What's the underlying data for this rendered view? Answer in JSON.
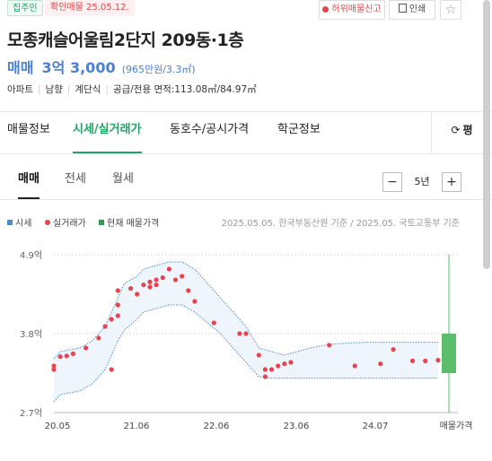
{
  "header": {
    "owner_badge": "집주인",
    "verified_badge": "확인매물 25.05.12.",
    "report_button": "허위매물신고",
    "print_button": "인쇄",
    "favorite_icon": "star-outline-icon"
  },
  "listing": {
    "title": "모종캐슬어울림2단지 209동·1층",
    "trade_type": "매매",
    "price": "3억 3,000",
    "price_per_unit": "(965만원/3.3㎡)",
    "attributes": [
      "아파트",
      "남향",
      "계단식",
      "공급/전용 면적:113.08㎡/84.97㎡"
    ]
  },
  "tabs": [
    {
      "label": "매물정보",
      "active": false
    },
    {
      "label": "시세/실거래가",
      "active": true
    },
    {
      "label": "동호수/공시가격",
      "active": false
    },
    {
      "label": "학군정보",
      "active": false
    }
  ],
  "unit_toggle": {
    "label": "평",
    "icon": "refresh-icon"
  },
  "subtabs": [
    {
      "label": "매매",
      "active": true
    },
    {
      "label": "전세",
      "active": false
    },
    {
      "label": "월세",
      "active": false
    }
  ],
  "period": {
    "minus": "−",
    "value": "5년",
    "plus": "+"
  },
  "legend": {
    "items": [
      {
        "label": "시세",
        "color": "#4a8bd6",
        "shape": "square"
      },
      {
        "label": "실거래가",
        "color": "#e8444f",
        "shape": "dot"
      },
      {
        "label": "현재 매물가격",
        "color": "#2f9d4f",
        "shape": "square"
      }
    ],
    "source": "2025.05.05. 한국부동산원 기준 / 2025.05. 국토교통부 기준"
  },
  "chart_data": {
    "type": "scatter",
    "x_ticks": [
      "20.05",
      "21.06",
      "22.06",
      "23.06",
      "24.07",
      "매물가격"
    ],
    "y_ticks": [
      "4.9억",
      "3.8억",
      "2.7억"
    ],
    "ylim": [
      2.7,
      4.9
    ],
    "xlim": [
      "2020-05",
      "2025-05"
    ],
    "band_color": "#4a8bd6",
    "band_fill": "#eef5fc",
    "dot_color": "#e8444f",
    "listing_color": "#5cbd6c",
    "price_band": {
      "x": [
        "2020-05",
        "2020-06",
        "2020-09",
        "2020-11",
        "2021-01",
        "2021-02",
        "2021-03",
        "2021-04",
        "2021-06",
        "2021-07",
        "2021-09",
        "2021-11",
        "2022-01",
        "2022-03",
        "2022-05",
        "2022-07",
        "2022-09",
        "2022-11",
        "2023-01",
        "2023-03",
        "2023-05",
        "2023-07",
        "2023-09",
        "2023-12",
        "2024-03",
        "2024-06",
        "2024-09",
        "2024-12",
        "2025-03",
        "2025-05"
      ],
      "upper": [
        3.45,
        3.55,
        3.6,
        3.7,
        3.9,
        4.1,
        4.3,
        4.5,
        4.6,
        4.7,
        4.75,
        4.8,
        4.8,
        4.7,
        4.5,
        4.3,
        4.1,
        3.9,
        3.6,
        3.55,
        3.5,
        3.55,
        3.6,
        3.65,
        3.67,
        3.68,
        3.68,
        3.68,
        3.68,
        3.68
      ],
      "lower": [
        2.85,
        2.95,
        3.0,
        3.1,
        3.3,
        3.5,
        3.7,
        3.85,
        4.0,
        4.1,
        4.15,
        4.2,
        4.2,
        4.1,
        3.95,
        3.8,
        3.6,
        3.4,
        3.2,
        3.18,
        3.18,
        3.18,
        3.18,
        3.18,
        3.18,
        3.18,
        3.18,
        3.18,
        3.18,
        3.18
      ]
    },
    "transactions": [
      {
        "x": "2020-05",
        "y": 3.3
      },
      {
        "x": "2020-05",
        "y": 3.35
      },
      {
        "x": "2020-06",
        "y": 3.48
      },
      {
        "x": "2020-07",
        "y": 3.49
      },
      {
        "x": "2020-08",
        "y": 3.52
      },
      {
        "x": "2020-10",
        "y": 3.6
      },
      {
        "x": "2020-12",
        "y": 3.74
      },
      {
        "x": "2021-01",
        "y": 3.9
      },
      {
        "x": "2021-02",
        "y": 4.0
      },
      {
        "x": "2021-02",
        "y": 3.3
      },
      {
        "x": "2021-03",
        "y": 4.05
      },
      {
        "x": "2021-03",
        "y": 4.2
      },
      {
        "x": "2021-03",
        "y": 4.4
      },
      {
        "x": "2021-05",
        "y": 4.43
      },
      {
        "x": "2021-06",
        "y": 4.35
      },
      {
        "x": "2021-07",
        "y": 4.48
      },
      {
        "x": "2021-08",
        "y": 4.52
      },
      {
        "x": "2021-08",
        "y": 4.45
      },
      {
        "x": "2021-09",
        "y": 4.55
      },
      {
        "x": "2021-09",
        "y": 4.48
      },
      {
        "x": "2021-10",
        "y": 4.58
      },
      {
        "x": "2021-11",
        "y": 4.7
      },
      {
        "x": "2021-12",
        "y": 4.55
      },
      {
        "x": "2022-01",
        "y": 4.6
      },
      {
        "x": "2022-02",
        "y": 4.4
      },
      {
        "x": "2022-03",
        "y": 4.25
      },
      {
        "x": "2022-06",
        "y": 3.95
      },
      {
        "x": "2022-10",
        "y": 3.8
      },
      {
        "x": "2022-11",
        "y": 3.8
      },
      {
        "x": "2023-01",
        "y": 3.5
      },
      {
        "x": "2023-02",
        "y": 3.3
      },
      {
        "x": "2023-02",
        "y": 3.2
      },
      {
        "x": "2023-03",
        "y": 3.3
      },
      {
        "x": "2023-04",
        "y": 3.35
      },
      {
        "x": "2023-05",
        "y": 3.38
      },
      {
        "x": "2023-06",
        "y": 3.4
      },
      {
        "x": "2023-12",
        "y": 3.64
      },
      {
        "x": "2024-04",
        "y": 3.35
      },
      {
        "x": "2024-08",
        "y": 3.38
      },
      {
        "x": "2024-10",
        "y": 3.58
      },
      {
        "x": "2025-01",
        "y": 3.42
      },
      {
        "x": "2025-03",
        "y": 3.42
      },
      {
        "x": "2025-05",
        "y": 3.43
      }
    ],
    "current_listing": {
      "low": 3.25,
      "high": 3.8
    }
  }
}
